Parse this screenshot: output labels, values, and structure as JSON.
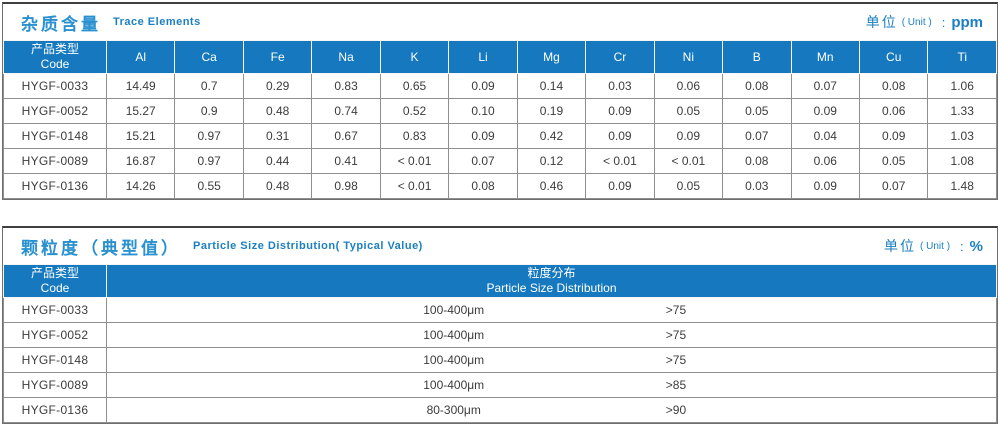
{
  "colors": {
    "header_bg": "#1678be",
    "title_blue": "#2a91d0",
    "subtitle_blue": "#1b7fc2",
    "outer_border": "#3f3f3f",
    "inner_border": "#8f8f8f",
    "cell_text": "#3c3c3c"
  },
  "section1": {
    "title_zh": "杂质含量",
    "title_en": "Trace Elements",
    "unit": {
      "label": "单位",
      "paren": "( Unit )",
      "colon": ":",
      "value": "ppm"
    },
    "table": {
      "code_header": {
        "zh": "产品类型",
        "en": "Code"
      },
      "element_columns": [
        "Al",
        "Ca",
        "Fe",
        "Na",
        "K",
        "Li",
        "Mg",
        "Cr",
        "Ni",
        "B",
        "Mn",
        "Cu",
        "Ti"
      ],
      "rows": [
        {
          "code": "HYGF-0033",
          "values": [
            "14.49",
            "0.7",
            "0.29",
            "0.83",
            "0.65",
            "0.09",
            "0.14",
            "0.03",
            "0.06",
            "0.08",
            "0.07",
            "0.08",
            "1.06"
          ]
        },
        {
          "code": "HYGF-0052",
          "values": [
            "15.27",
            "0.9",
            "0.48",
            "0.74",
            "0.52",
            "0.10",
            "0.19",
            "0.09",
            "0.05",
            "0.05",
            "0.09",
            "0.06",
            "1.33"
          ]
        },
        {
          "code": "HYGF-0148",
          "values": [
            "15.21",
            "0.97",
            "0.31",
            "0.67",
            "0.83",
            "0.09",
            "0.42",
            "0.09",
            "0.09",
            "0.07",
            "0.04",
            "0.09",
            "1.03"
          ]
        },
        {
          "code": "HYGF-0089",
          "values": [
            "16.87",
            "0.97",
            "0.44",
            "0.41",
            "< 0.01",
            "0.07",
            "0.12",
            "< 0.01",
            "< 0.01",
            "0.08",
            "0.06",
            "0.05",
            "1.08"
          ]
        },
        {
          "code": "HYGF-0136",
          "values": [
            "14.26",
            "0.55",
            "0.48",
            "0.98",
            "< 0.01",
            "0.08",
            "0.46",
            "0.09",
            "0.05",
            "0.03",
            "0.09",
            "0.07",
            "1.48"
          ]
        }
      ]
    }
  },
  "section2": {
    "title_zh": "颗粒度（典型值）",
    "title_en": "Particle Size Distribution( Typical Value)",
    "unit": {
      "label": "单位",
      "paren": "( Unit )",
      "colon": ":",
      "value": "%"
    },
    "table": {
      "code_header": {
        "zh": "产品类型",
        "en": "Code"
      },
      "dist_header": {
        "zh": "粒度分布",
        "en": "Particle Size  Distribution"
      },
      "rows": [
        {
          "code": "HYGF-0033",
          "range": "100-400μm",
          "value": ">75"
        },
        {
          "code": "HYGF-0052",
          "range": "100-400μm",
          "value": ">75"
        },
        {
          "code": "HYGF-0148",
          "range": "100-400μm",
          "value": ">75"
        },
        {
          "code": "HYGF-0089",
          "range": "100-400μm",
          "value": ">85"
        },
        {
          "code": "HYGF-0136",
          "range": "80-300μm",
          "value": ">90"
        }
      ]
    }
  }
}
